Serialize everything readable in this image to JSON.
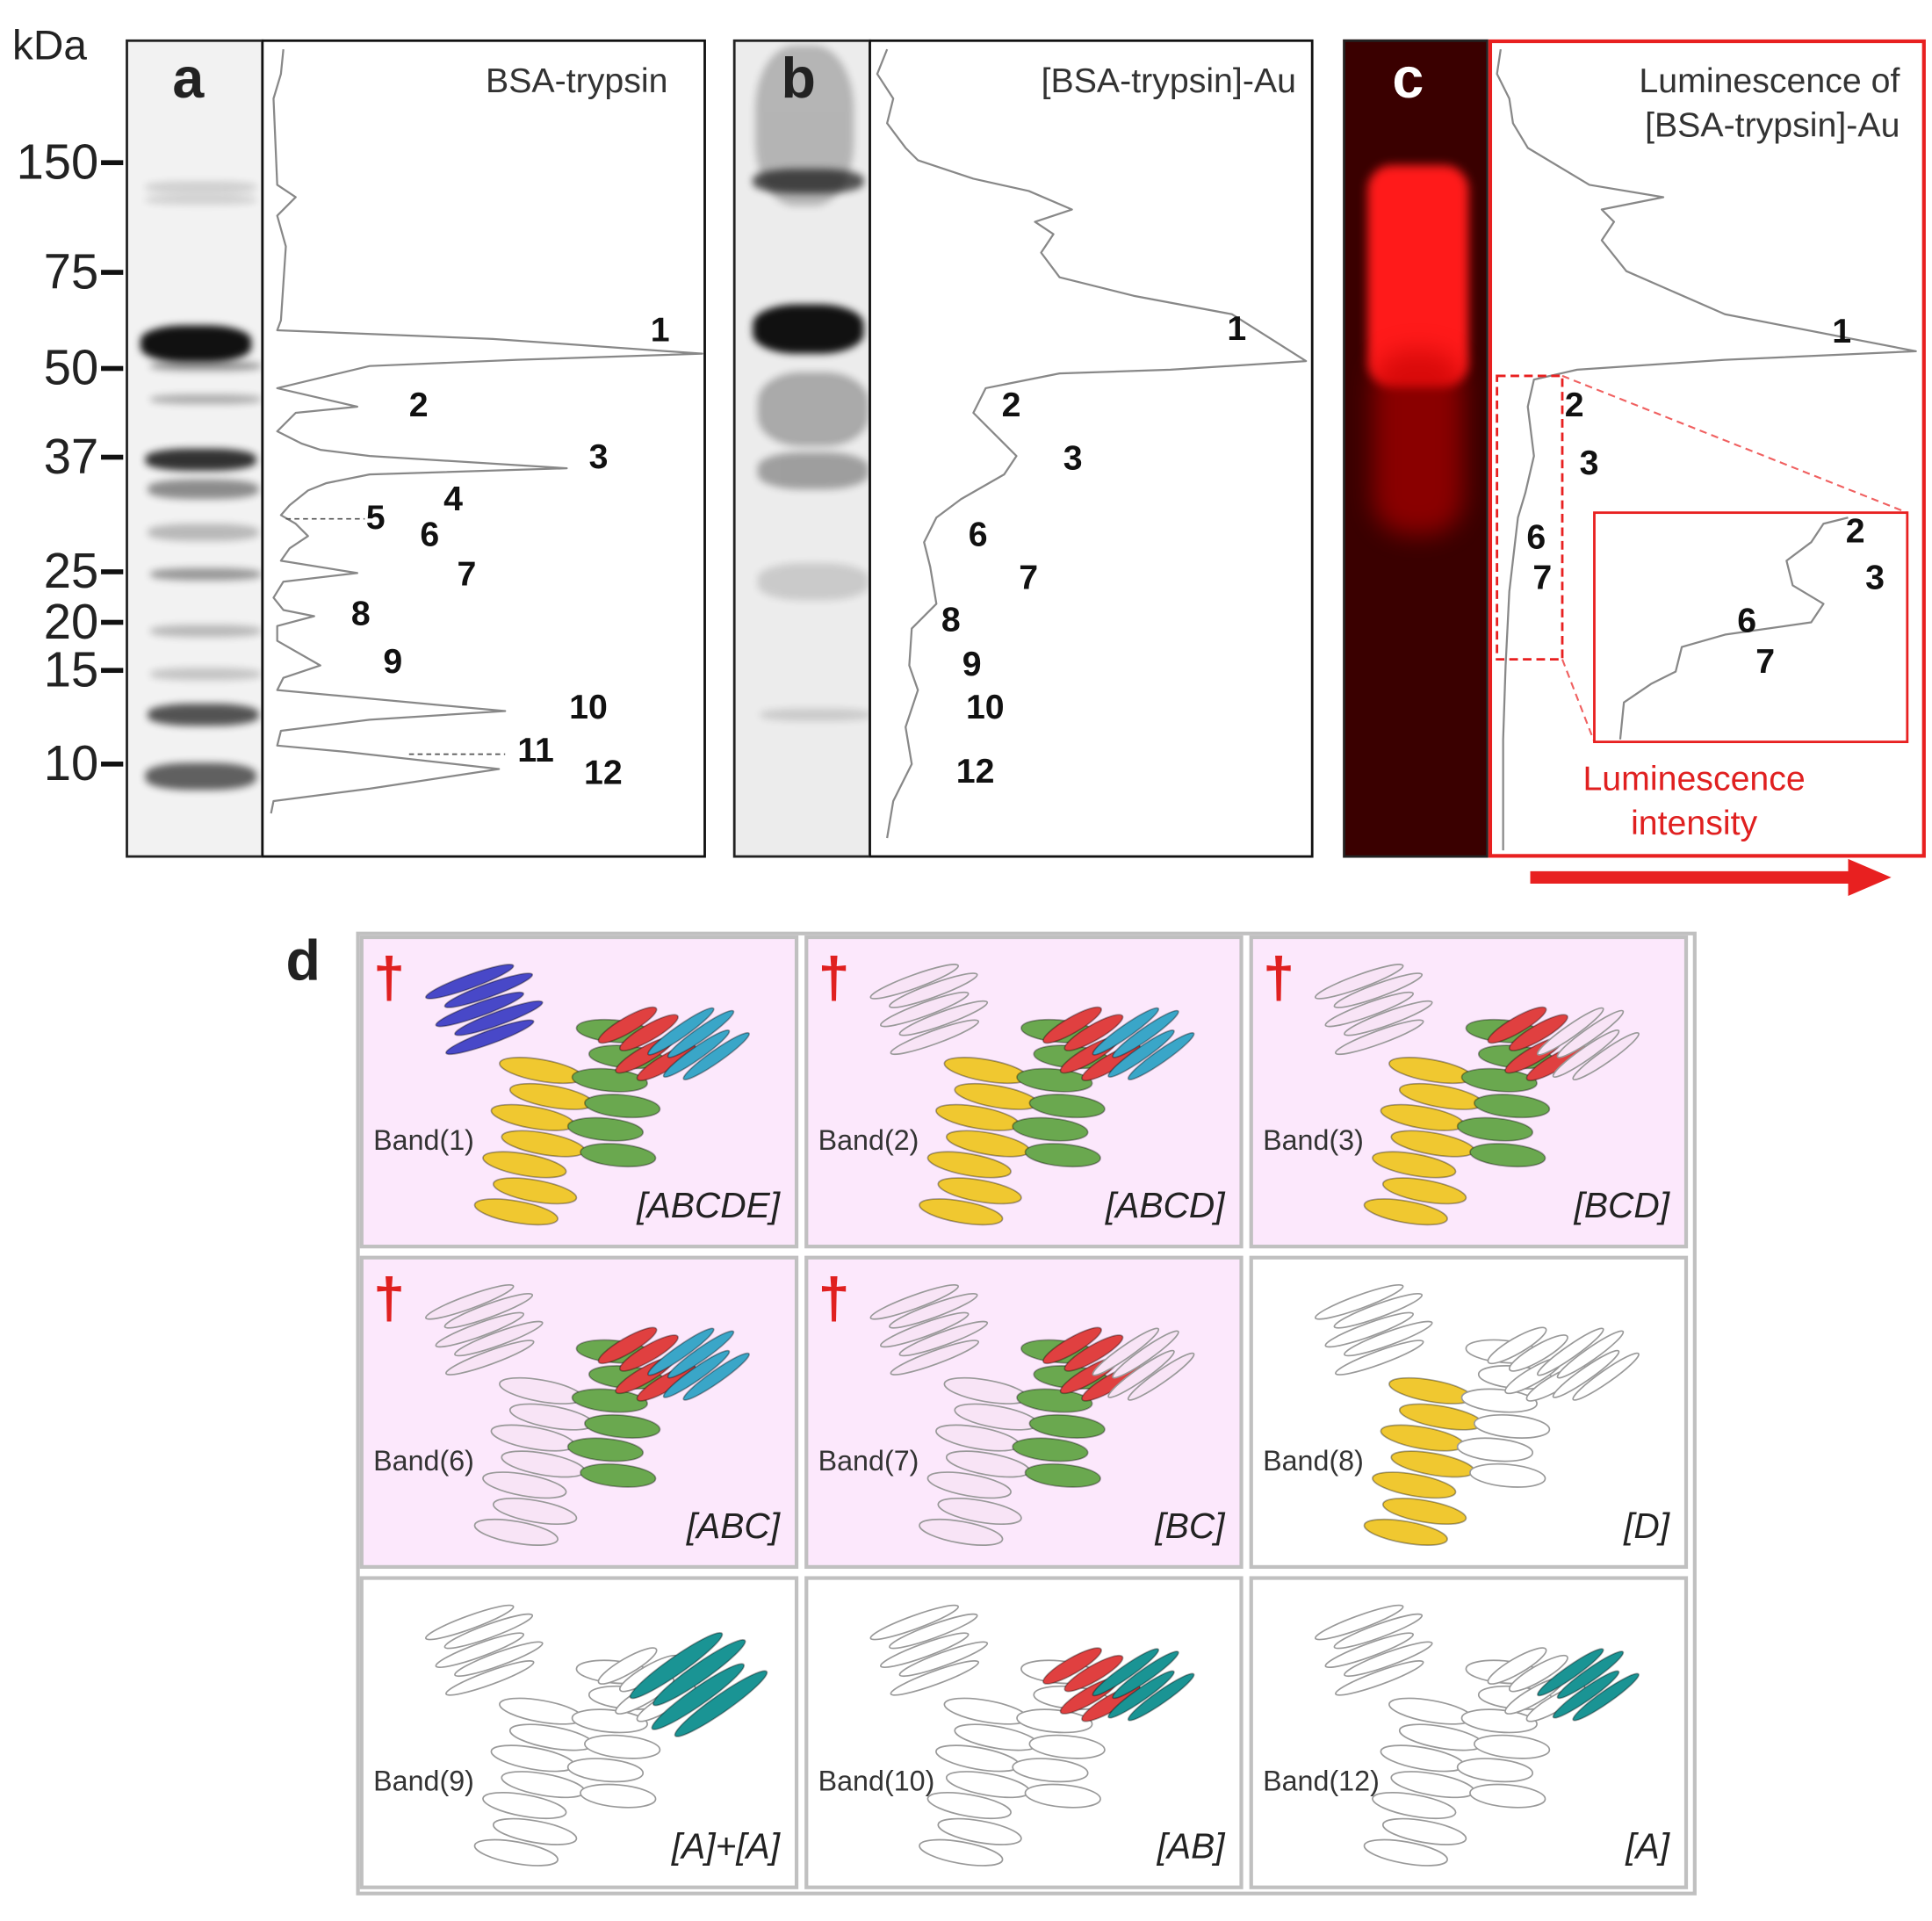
{
  "axis": {
    "unit": "kDa",
    "ticks": [
      "150",
      "75",
      "50",
      "37",
      "25",
      "20",
      "15",
      "10"
    ]
  },
  "panels": {
    "a": {
      "letter": "a",
      "title": "BSA-trypsin",
      "bands": [
        "1",
        "2",
        "3",
        "4",
        "5",
        "6",
        "7",
        "8",
        "9",
        "10",
        "11",
        "12"
      ]
    },
    "b": {
      "letter": "b",
      "title": "[BSA-trypsin]-Au",
      "bands": [
        "1",
        "2",
        "3",
        "6",
        "7",
        "8",
        "9",
        "10",
        "12"
      ]
    },
    "c": {
      "letter": "c",
      "title_line1": "Luminescence of",
      "title_line2": "[BSA-trypsin]-Au",
      "bands": [
        "1",
        "2",
        "3",
        "6",
        "7"
      ],
      "inset_bands": [
        "2",
        "3",
        "6",
        "7"
      ],
      "intensity_line1": "Luminescence",
      "intensity_line2": "intensity"
    },
    "d": {
      "letter": "d",
      "dagger": "†",
      "cells": [
        {
          "band": "Band(1)",
          "fragment": "[ABCDE]",
          "luminescent": true,
          "domains": "ABCDE"
        },
        {
          "band": "Band(2)",
          "fragment": "[ABCD]",
          "luminescent": true,
          "domains": "ABCD"
        },
        {
          "band": "Band(3)",
          "fragment": "[BCD]",
          "luminescent": true,
          "domains": "BCD"
        },
        {
          "band": "Band(6)",
          "fragment": "[ABC]",
          "luminescent": true,
          "domains": "ABC"
        },
        {
          "band": "Band(7)",
          "fragment": "[BC]",
          "luminescent": true,
          "domains": "BC"
        },
        {
          "band": "Band(8)",
          "fragment": "[D]",
          "luminescent": false,
          "domains": "D"
        },
        {
          "band": "Band(9)",
          "fragment": "[A]+[A]",
          "luminescent": false,
          "domains": "A"
        },
        {
          "band": "Band(10)",
          "fragment": "[AB]",
          "luminescent": false,
          "domains": "AB"
        },
        {
          "band": "Band(12)",
          "fragment": "[A]",
          "luminescent": false,
          "domains": "A"
        }
      ]
    }
  },
  "colors": {
    "highlight": "#e02020",
    "pink_cell": "#fce8fc",
    "domain_A": "#3aa6c8",
    "domain_A_dark": "#1a9494",
    "domain_B": "#e04040",
    "domain_C": "#6aa84f",
    "domain_D": "#f0c830",
    "domain_E": "#4848c8"
  }
}
